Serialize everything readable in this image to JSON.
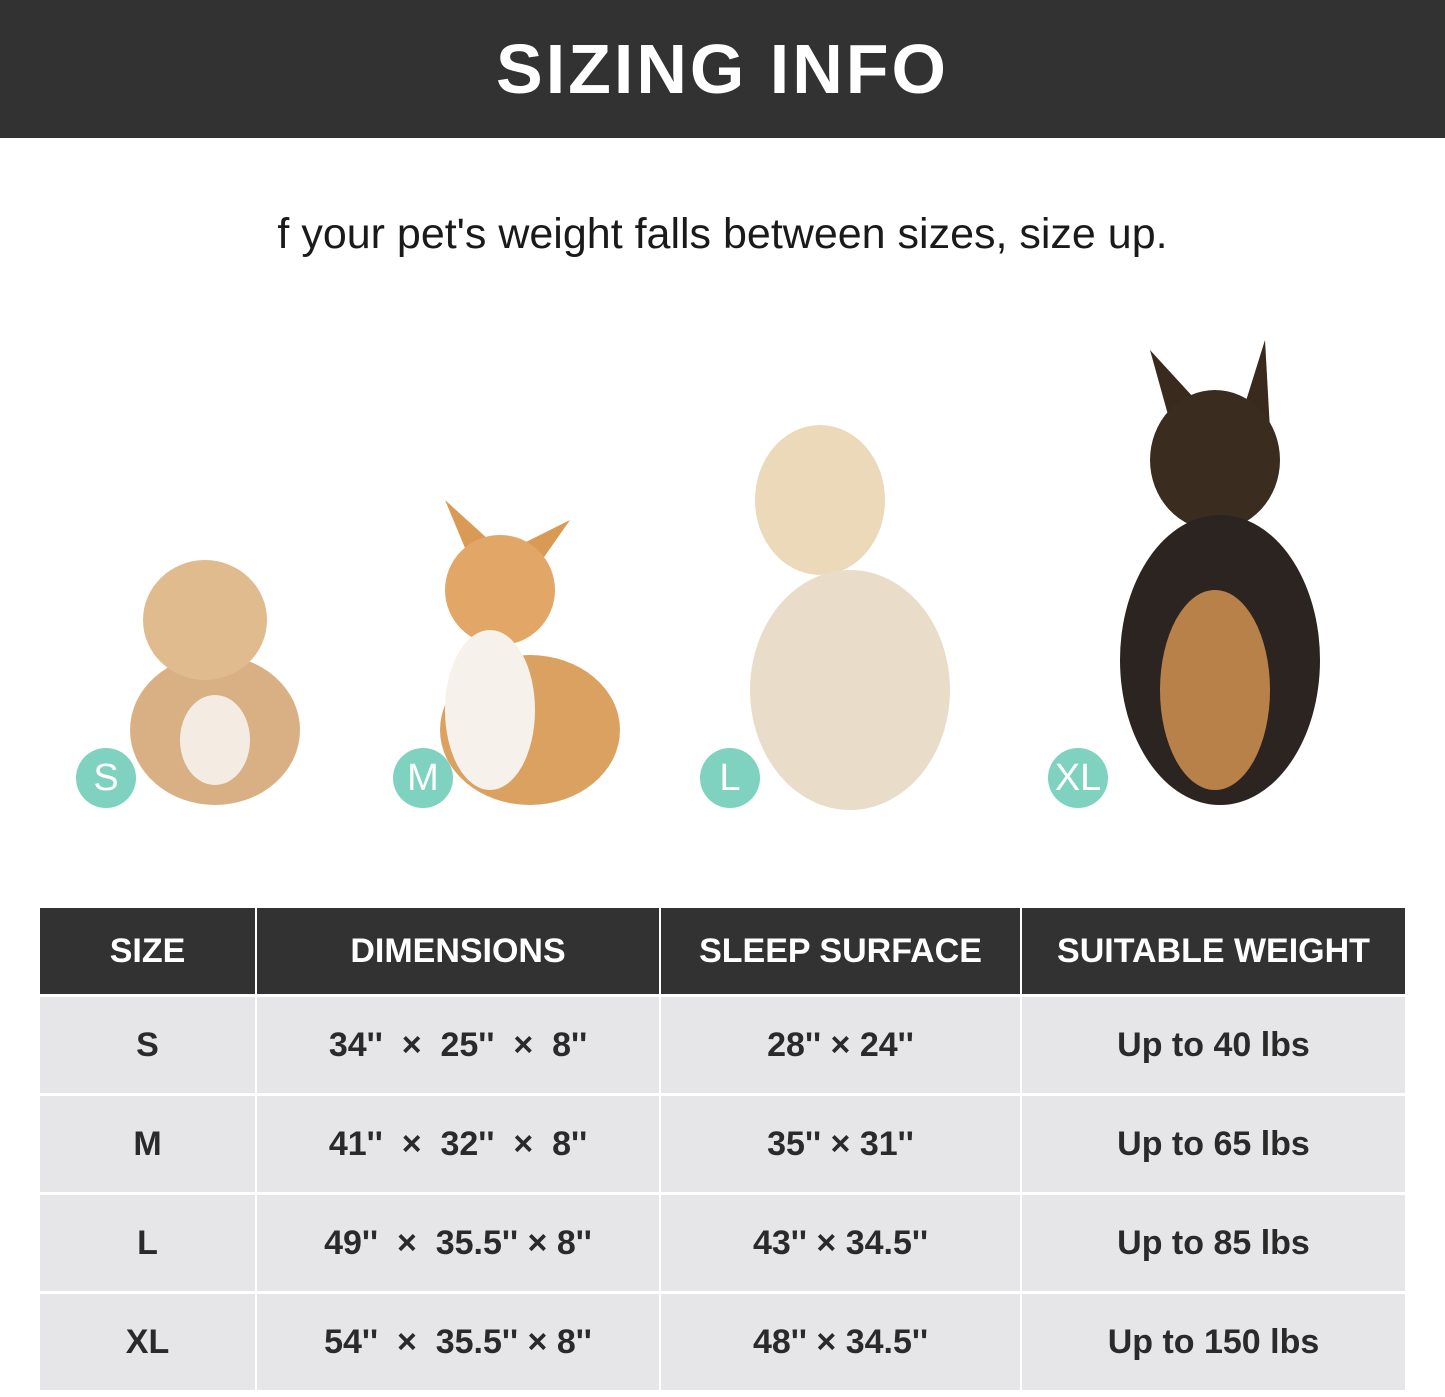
{
  "header": {
    "title": "SIZING INFO"
  },
  "subtitle": "f your pet's weight falls between sizes, size up.",
  "colors": {
    "header_bg": "#323232",
    "badge": "#7fd2bf",
    "row_bg": "#e6e6e9"
  },
  "dogs": [
    {
      "badge": "S",
      "image": "small fluffy dog"
    },
    {
      "badge": "M",
      "image": "corgi"
    },
    {
      "badge": "L",
      "image": "golden retriever"
    },
    {
      "badge": "XL",
      "image": "german shepherd"
    }
  ],
  "table": {
    "headers": [
      "SIZE",
      "DIMENSIONS",
      "SLEEP SURFACE",
      "SUITABLE WEIGHT"
    ],
    "rows": [
      [
        "S",
        "34''  ×  25''  ×  8''",
        "28'' × 24''",
        "Up to 40 lbs"
      ],
      [
        "M",
        "41''  ×  32''  ×  8''",
        "35'' × 31''",
        "Up to 65 lbs"
      ],
      [
        "L",
        "49''  ×  35.5'' × 8''",
        "43'' × 34.5''",
        "Up to 85 lbs"
      ],
      [
        "XL",
        "54''  ×  35.5'' × 8''",
        "48'' × 34.5''",
        "Up to 150 lbs"
      ]
    ]
  }
}
